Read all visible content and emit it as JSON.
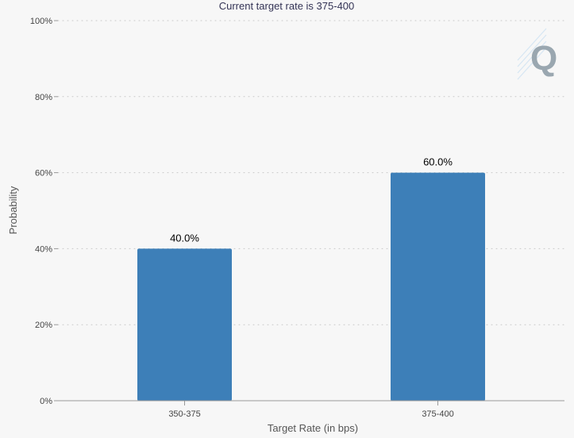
{
  "chart_data": {
    "type": "bar",
    "title": "Current target rate is 375-400",
    "xlabel": "Target Rate (in bps)",
    "ylabel": "Probability",
    "categories": [
      "350-375",
      "375-400"
    ],
    "values": [
      40.0,
      60.0
    ],
    "data_labels": [
      "40.0%",
      "60.0%"
    ],
    "ylim": [
      0,
      100
    ],
    "yticks": [
      0,
      20,
      40,
      60,
      80,
      100
    ],
    "ytick_labels": [
      "0%",
      "20%",
      "40%",
      "60%",
      "80%",
      "100%"
    ],
    "grid": true,
    "legend": "none",
    "bar_color": "#3d7fb8"
  },
  "watermark": {
    "icon": "q-logo-icon",
    "color": "#9aa7b0"
  }
}
